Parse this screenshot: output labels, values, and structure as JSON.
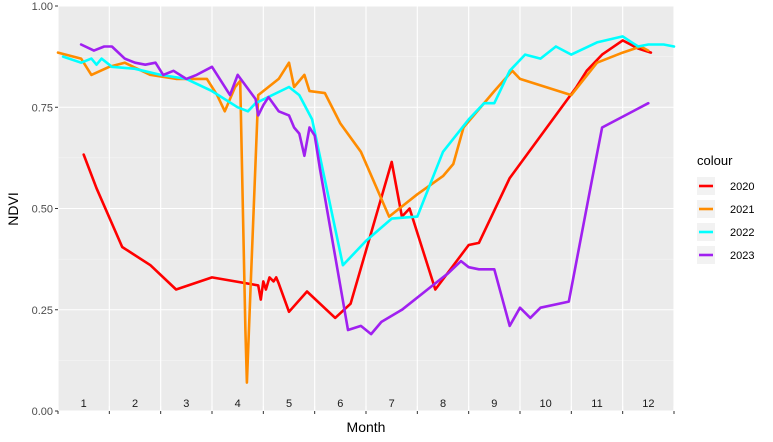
{
  "chart_data": {
    "type": "line",
    "xlabel": "Month",
    "ylabel": "NDVI",
    "xlim": [
      0.5,
      12.5
    ],
    "ylim": [
      0,
      1
    ],
    "yticks": [
      "0.00",
      "0.25",
      "0.50",
      "0.75",
      "1.00"
    ],
    "month_labels": [
      "1",
      "2",
      "3",
      "4",
      "5",
      "6",
      "7",
      "8",
      "9",
      "10",
      "11",
      "12"
    ],
    "grid": true,
    "legend": {
      "title": "colour",
      "position": "right"
    },
    "series": [
      {
        "name": "2020",
        "color": "#ff0000",
        "points": [
          [
            1.0,
            0.633
          ],
          [
            1.25,
            0.55
          ],
          [
            1.75,
            0.405
          ],
          [
            2.3,
            0.36
          ],
          [
            2.8,
            0.3
          ],
          [
            3.5,
            0.33
          ],
          [
            4.4,
            0.31
          ],
          [
            4.45,
            0.275
          ],
          [
            4.5,
            0.32
          ],
          [
            4.55,
            0.3
          ],
          [
            4.62,
            0.33
          ],
          [
            4.7,
            0.32
          ],
          [
            4.75,
            0.33
          ],
          [
            4.8,
            0.315
          ],
          [
            5.0,
            0.245
          ],
          [
            5.35,
            0.295
          ],
          [
            5.9,
            0.23
          ],
          [
            6.2,
            0.265
          ],
          [
            7.0,
            0.615
          ],
          [
            7.2,
            0.48
          ],
          [
            7.35,
            0.5
          ],
          [
            7.85,
            0.3
          ],
          [
            8.5,
            0.41
          ],
          [
            8.7,
            0.415
          ],
          [
            9.3,
            0.575
          ],
          [
            10.6,
            0.8
          ],
          [
            10.8,
            0.84
          ],
          [
            11.1,
            0.88
          ],
          [
            11.5,
            0.915
          ],
          [
            11.8,
            0.895
          ],
          [
            12.05,
            0.885
          ]
        ]
      },
      {
        "name": "2021",
        "color": "#ff8c00",
        "points": [
          [
            0.5,
            0.885
          ],
          [
            0.95,
            0.87
          ],
          [
            1.15,
            0.83
          ],
          [
            1.5,
            0.85
          ],
          [
            1.8,
            0.86
          ],
          [
            2.3,
            0.83
          ],
          [
            2.8,
            0.82
          ],
          [
            3.4,
            0.82
          ],
          [
            3.6,
            0.78
          ],
          [
            3.75,
            0.74
          ],
          [
            3.95,
            0.8
          ],
          [
            4.05,
            0.815
          ],
          [
            4.15,
            0.2
          ],
          [
            4.18,
            0.07
          ],
          [
            4.25,
            0.3
          ],
          [
            4.4,
            0.78
          ],
          [
            4.8,
            0.82
          ],
          [
            5.0,
            0.86
          ],
          [
            5.1,
            0.8
          ],
          [
            5.3,
            0.83
          ],
          [
            5.4,
            0.79
          ],
          [
            5.7,
            0.785
          ],
          [
            6.0,
            0.71
          ],
          [
            6.4,
            0.64
          ],
          [
            6.95,
            0.48
          ],
          [
            7.5,
            0.535
          ],
          [
            8.0,
            0.58
          ],
          [
            8.2,
            0.61
          ],
          [
            8.4,
            0.7
          ],
          [
            9.0,
            0.79
          ],
          [
            9.35,
            0.84
          ],
          [
            9.5,
            0.82
          ],
          [
            10.5,
            0.78
          ],
          [
            11.0,
            0.86
          ],
          [
            11.5,
            0.885
          ],
          [
            11.85,
            0.9
          ],
          [
            12.0,
            0.89
          ]
        ]
      },
      {
        "name": "2022",
        "color": "#00ffff",
        "points": [
          [
            0.6,
            0.875
          ],
          [
            0.95,
            0.86
          ],
          [
            1.15,
            0.87
          ],
          [
            1.25,
            0.855
          ],
          [
            1.35,
            0.87
          ],
          [
            1.55,
            0.85
          ],
          [
            2.0,
            0.845
          ],
          [
            2.5,
            0.83
          ],
          [
            3.0,
            0.82
          ],
          [
            3.5,
            0.79
          ],
          [
            4.0,
            0.75
          ],
          [
            4.2,
            0.74
          ],
          [
            4.35,
            0.76
          ],
          [
            5.0,
            0.8
          ],
          [
            5.2,
            0.78
          ],
          [
            5.45,
            0.72
          ],
          [
            6.05,
            0.36
          ],
          [
            6.5,
            0.42
          ],
          [
            7.0,
            0.475
          ],
          [
            7.5,
            0.48
          ],
          [
            8.0,
            0.64
          ],
          [
            8.5,
            0.72
          ],
          [
            8.8,
            0.76
          ],
          [
            9.0,
            0.76
          ],
          [
            9.3,
            0.84
          ],
          [
            9.6,
            0.88
          ],
          [
            9.9,
            0.87
          ],
          [
            10.2,
            0.9
          ],
          [
            10.5,
            0.88
          ],
          [
            11.0,
            0.91
          ],
          [
            11.5,
            0.925
          ],
          [
            11.8,
            0.9
          ],
          [
            12.0,
            0.905
          ],
          [
            12.3,
            0.905
          ],
          [
            12.5,
            0.9
          ]
        ]
      },
      {
        "name": "2023",
        "color": "#a020f0",
        "points": [
          [
            0.95,
            0.905
          ],
          [
            1.2,
            0.89
          ],
          [
            1.4,
            0.9
          ],
          [
            1.55,
            0.9
          ],
          [
            1.8,
            0.87
          ],
          [
            2.0,
            0.86
          ],
          [
            2.2,
            0.855
          ],
          [
            2.4,
            0.86
          ],
          [
            2.55,
            0.83
          ],
          [
            2.75,
            0.84
          ],
          [
            3.0,
            0.82
          ],
          [
            3.2,
            0.83
          ],
          [
            3.5,
            0.85
          ],
          [
            3.85,
            0.78
          ],
          [
            4.0,
            0.83
          ],
          [
            4.35,
            0.77
          ],
          [
            4.4,
            0.73
          ],
          [
            4.5,
            0.755
          ],
          [
            4.6,
            0.775
          ],
          [
            4.8,
            0.74
          ],
          [
            5.0,
            0.73
          ],
          [
            5.1,
            0.7
          ],
          [
            5.2,
            0.685
          ],
          [
            5.3,
            0.63
          ],
          [
            5.4,
            0.7
          ],
          [
            5.5,
            0.68
          ],
          [
            5.6,
            0.6
          ],
          [
            6.15,
            0.2
          ],
          [
            6.4,
            0.21
          ],
          [
            6.6,
            0.19
          ],
          [
            6.8,
            0.22
          ],
          [
            7.2,
            0.25
          ],
          [
            7.8,
            0.31
          ],
          [
            8.1,
            0.34
          ],
          [
            8.35,
            0.37
          ],
          [
            8.5,
            0.355
          ],
          [
            8.7,
            0.35
          ],
          [
            9.0,
            0.35
          ],
          [
            9.3,
            0.21
          ],
          [
            9.5,
            0.255
          ],
          [
            9.7,
            0.23
          ],
          [
            9.9,
            0.255
          ],
          [
            10.45,
            0.27
          ],
          [
            10.9,
            0.57
          ],
          [
            11.1,
            0.7
          ],
          [
            12.0,
            0.76
          ]
        ]
      }
    ]
  }
}
